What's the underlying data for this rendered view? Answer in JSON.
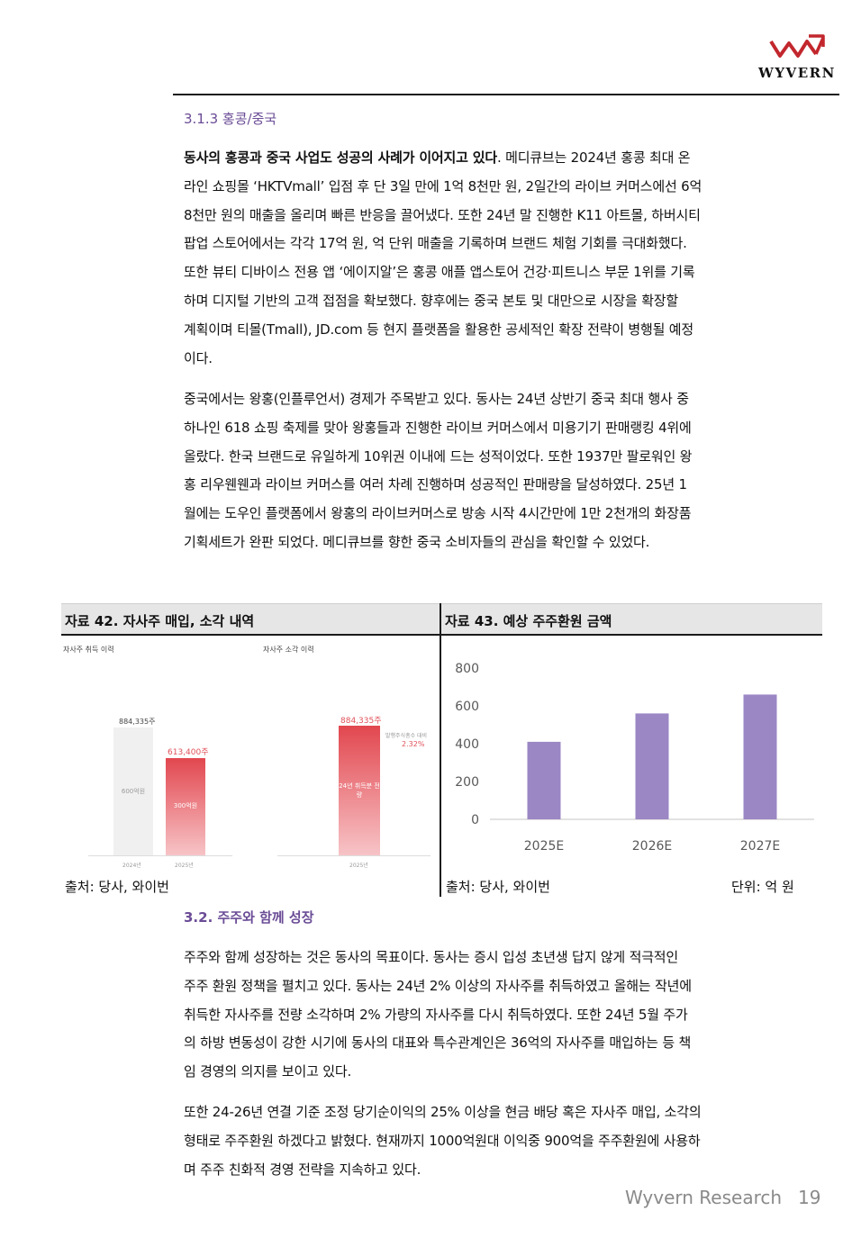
{
  "header": {
    "logo_text": "WYVERN",
    "brand_color": "#c2272d"
  },
  "section_313": {
    "title": "3.1.3 홍콩/중국",
    "para1_bold": "동사의 홍콩과 중국 사업도 성공의 사례가 이어지고 있다",
    "para1_lines_rest": [
      ". 메디큐브는 2024년 홍콩 최대 온",
      "라인 쇼핑몰 ‘HKTVmall’ 입점 후 단 3일 만에 1억 8천만 원, 2일간의 라이브 커머스에선 6억",
      "8천만 원의 매출을 올리며 빠른 반응을 끌어냈다. 또한 24년 말 진행한 K11 아트몰, 하버시티",
      "팝업 스토어에서는 각각 17억 원, 억 단위 매출을 기록하며 브랜드 체험 기회를 극대화했다.",
      "또한 뷰티 디바이스 전용 앱 ‘에이지알’은 홍콩 애플 앱스토어 건강·피트니스 부문 1위를 기록",
      "하며 디지털 기반의 고객 접점을 확보했다. 향후에는 중국 본토 및 대만으로 시장을 확장할",
      "계획이며 티몰(Tmall), JD.com 등 현지 플랫폼을 활용한 공세적인 확장 전략이 병행될 예정",
      "이다."
    ],
    "para2_lines": [
      "중국에서는 왕홍(인플루언서) 경제가 주목받고 있다. 동사는 24년 상반기 중국 최대 행사 중",
      "하나인 618 쇼핑 축제를 맞아 왕홍들과 진행한 라이브 커머스에서 미용기기 판매랭킹 4위에",
      "올랐다. 한국 브랜드로 유일하게 10위권 이내에 드는 성적이었다. 또한 1937만 팔로워인 왕",
      "홍 리우웬웬과 라이브 커머스를 여러 차례 진행하며 성공적인 판매량을 달성하였다. 25년 1",
      "월에는 도우인 플랫폼에서 왕홍의 라이브커머스로 방송 시작 4시간만에 1만 2천개의 화장품",
      "기획세트가 완판 되었다. 메디큐브를 향한 중국 소비자들의 관심을 확인할 수 있었다."
    ]
  },
  "exhibit42": {
    "title": "자료 42. 자사주 매입, 소각 내역",
    "source": "출처: 당사, 와이번",
    "image_text": {
      "left_title": "자사주 취득 이력",
      "right_title": "자사주 소각 이력",
      "val_2024": "884,335주",
      "val_2025": "613,400주",
      "amt_2024": "600억원",
      "amt_2025": "300억원",
      "burn_val": "884,335주",
      "burn_inner": "24년 취득분 전량",
      "burn_ratio_label": "발행주식총수 대비",
      "burn_ratio": "2.32%",
      "year_2024": "2024년",
      "year_2025": "2025년",
      "year_burn": "2025년"
    },
    "colors": {
      "grey_bar": "#f0f0f0",
      "red_bar_top": "#e2474f",
      "red_bar_bottom": "#f7c4c7"
    }
  },
  "exhibit43": {
    "title": "자료 43. 예상 주주환원 금액",
    "source": "출처: 당사, 와이번",
    "unit": "단위:  억 원",
    "chart_data": {
      "type": "bar",
      "categories": [
        "2025E",
        "2026E",
        "2027E"
      ],
      "values": [
        410,
        560,
        660
      ],
      "ylim": [
        0,
        800
      ],
      "yticks": [
        0,
        200,
        400,
        600,
        800
      ],
      "bar_color": "#9b87c4",
      "grid": false
    }
  },
  "section_32": {
    "title": "3.2. 주주와 함께 성장",
    "para1_lines": [
      "주주와 함께 성장하는 것은 동사의 목표이다. 동사는 증시 입성 초년생 답지 않게 적극적인",
      "주주 환원 정책을 펼치고 있다. 동사는 24년 2% 이상의 자사주를 취득하였고 올해는 작년에",
      "취득한 자사주를 전량 소각하며 2% 가량의 자사주를 다시 취득하였다. 또한 24년 5월 주가",
      "의 하방 변동성이 강한 시기에 동사의 대표와 특수관계인은 36억의 자사주를 매입하는 등 책",
      "임 경영의 의지를 보이고 있다."
    ],
    "para2_lines": [
      "또한 24-26년 연결 기준 조정 당기순이익의 25% 이상을 현금 배당 혹은 자사주 매입, 소각의",
      "형태로 주주환원 하겠다고 밝혔다. 현재까지 1000억원대 이익중 900억을 주주환원에 사용하",
      "며 주주 친화적 경영 전략을 지속하고 있다."
    ]
  },
  "footer": {
    "brand": "Wyvern Research",
    "page_number": "19"
  }
}
